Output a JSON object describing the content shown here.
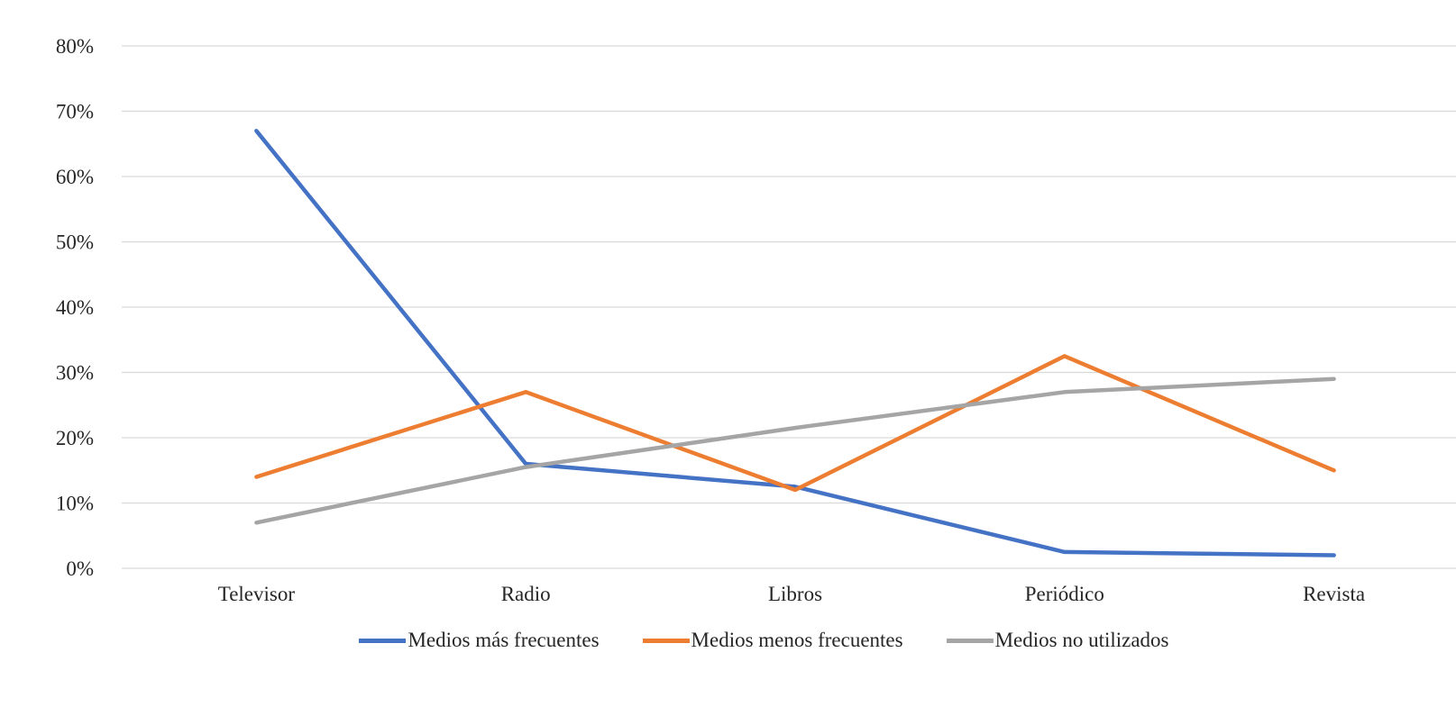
{
  "chart_data": {
    "type": "line",
    "title": "",
    "xlabel": "",
    "ylabel": "",
    "categories": [
      "Televisor",
      "Radio",
      "Libros",
      "Periódico",
      "Revista"
    ],
    "series": [
      {
        "name": "Medios más frecuentes",
        "color": "#4472C4",
        "values": [
          67,
          16,
          12.5,
          2.5,
          2
        ]
      },
      {
        "name": "Medios menos frecuentes",
        "color": "#ED7D31",
        "values": [
          14,
          27,
          12,
          32.5,
          15
        ]
      },
      {
        "name": "Medios no utilizados",
        "color": "#A5A5A5",
        "values": [
          7,
          15.5,
          21.5,
          27,
          29
        ]
      }
    ],
    "ylim": [
      0,
      80
    ],
    "ytick_step": 10,
    "yticklabels": [
      "0%",
      "10%",
      "20%",
      "30%",
      "40%",
      "50%",
      "60%",
      "70%",
      "80%"
    ],
    "grid": "horizontal-only",
    "legend_position": "bottom",
    "colors": {
      "background": "#FFFFFF",
      "gridline": "#D9D9D9",
      "text": "#262626"
    }
  }
}
